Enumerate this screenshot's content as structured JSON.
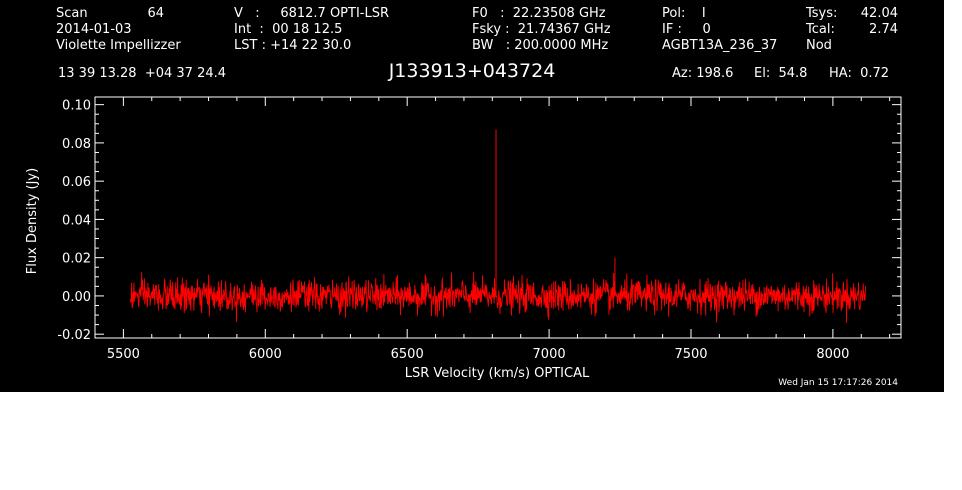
{
  "header": {
    "scan_label": "Scan",
    "scan_value": "64",
    "date": "2014-01-03",
    "observer": "Violette Impellizzer",
    "velocity": "V   :     6812.7 OPTI-LSR",
    "integration": "Int  :  00 18 12.5",
    "lst": "LST : +14 22 30.0",
    "f0": "F0   :  22.23508 GHz",
    "fsky": "Fsky :  21.74367 GHz",
    "bw": "BW   : 200.0000 MHz",
    "pol": "Pol:    I",
    "if": "IF :     0",
    "project": "AGBT13A_236_37",
    "tsys_label": "Tsys:",
    "tsys_value": "42.04",
    "tcal_label": "Tcal:",
    "tcal_value": "2.74",
    "proc": "Nod",
    "coords": "13 39 13.28  +04 37 24.4",
    "source": "J133913+043724",
    "az": "Az: 198.6",
    "el": "El:  54.8",
    "ha": "HA:  0.72",
    "timestamp": "Wed Jan 15 17:17:26 2014"
  },
  "chart_data": {
    "type": "line",
    "title": "J133913+043724",
    "xlabel": "LSR Velocity (km/s) OPTICAL",
    "ylabel": "Flux Density (Jy)",
    "xlim": [
      5400,
      8240
    ],
    "ylim": [
      -0.022,
      0.104
    ],
    "x_ticks": [
      5500,
      6000,
      6500,
      7000,
      7500,
      8000
    ],
    "x_tick_labels": [
      "5500",
      "6000",
      "6500",
      "7000",
      "7500",
      "8000"
    ],
    "y_ticks": [
      -0.02,
      0.0,
      0.02,
      0.04,
      0.06,
      0.08,
      0.1
    ],
    "y_tick_labels": [
      "-0.02",
      "0.00",
      "0.02",
      "0.04",
      "0.06",
      "0.08",
      "0.10"
    ],
    "grid": false,
    "colors": {
      "line": "#ff0000",
      "background": "#000000",
      "axes": "#ffffff"
    },
    "series": [
      {
        "velocity_range": [
          5525,
          8115
        ],
        "noise_rms": 0.0042,
        "baseline": 0.0,
        "features": [
          {
            "x": 6813,
            "y": 0.087
          },
          {
            "x": 7232,
            "y": 0.02
          }
        ]
      }
    ]
  }
}
